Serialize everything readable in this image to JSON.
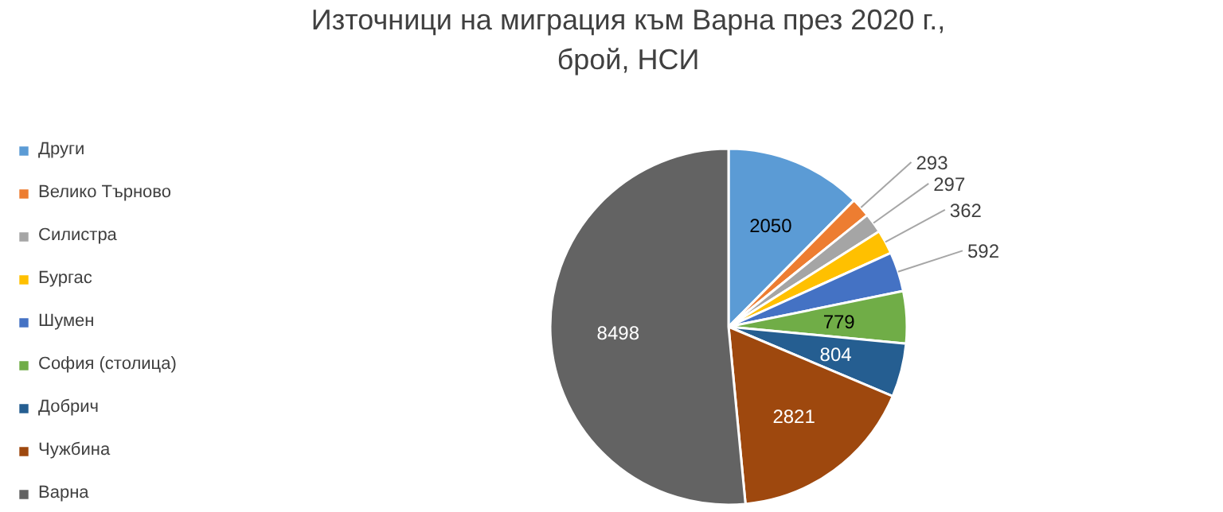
{
  "chart_data": {
    "type": "pie",
    "title": "Източници на миграция към Варна през 2020 г.,\nброй, НСИ",
    "categories": [
      "Други",
      "Велико Търново",
      "Силистра",
      "Бургас",
      "Шумен",
      "София (столица)",
      "Добрич",
      "Чужбина",
      "Варна"
    ],
    "values": [
      2050,
      293,
      297,
      362,
      592,
      779,
      804,
      2821,
      8498
    ],
    "colors": [
      "#5b9bd5",
      "#ed7d31",
      "#a5a5a5",
      "#ffc000",
      "#4472c4",
      "#70ad47",
      "#255e91",
      "#9e480e",
      "#636363"
    ],
    "data_labels": true,
    "legend": "left"
  }
}
